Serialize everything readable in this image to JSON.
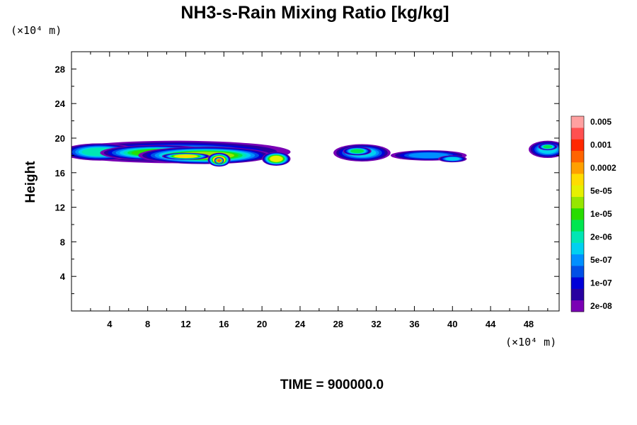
{
  "chart_data": {
    "type": "heatmap",
    "title": "NH3-s-Rain Mixing Ratio [kg/kg]",
    "ylabel": "Height",
    "x_unit_label": "(×10⁴ m)",
    "y_unit_label": "(×10⁴ m)",
    "footer": "TIME = 900000.0",
    "xlim": [
      0,
      51.2
    ],
    "ylim": [
      0,
      30
    ],
    "x_ticks": [
      4,
      8,
      12,
      16,
      20,
      24,
      28,
      32,
      36,
      40,
      44,
      48
    ],
    "y_ticks": [
      4,
      8,
      12,
      16,
      20,
      24,
      28
    ],
    "colorbar": {
      "colors": [
        "#7a00b4",
        "#2800a0",
        "#0000d8",
        "#0050e6",
        "#0090ff",
        "#00d0f0",
        "#00e6b4",
        "#00e650",
        "#28dc00",
        "#96e600",
        "#e6f000",
        "#ffdc00",
        "#ffa000",
        "#ff6400",
        "#ff2800",
        "#ff5050",
        "#ffa0a0"
      ],
      "labels": [
        "2e-08",
        "1e-07",
        "5e-07",
        "2e-06",
        "1e-05",
        "5e-05",
        "0.0002",
        "0.001",
        "0.005"
      ]
    },
    "cloud_blobs": [
      {
        "x": 11,
        "y": 18.4,
        "rx": 12,
        "ry": 1.3,
        "level": 4
      },
      {
        "x": 3,
        "y": 18.4,
        "rx": 4,
        "ry": 1.0,
        "level": 6
      },
      {
        "x": 9,
        "y": 18.3,
        "rx": 6,
        "ry": 0.9,
        "level": 8
      },
      {
        "x": 14,
        "y": 18.0,
        "rx": 7,
        "ry": 1.0,
        "level": 9
      },
      {
        "x": 12,
        "y": 17.9,
        "rx": 2.5,
        "ry": 0.4,
        "level": 11
      },
      {
        "x": 15.5,
        "y": 17.5,
        "rx": 1.2,
        "ry": 0.8,
        "level": 12
      },
      {
        "x": 15.5,
        "y": 17.4,
        "rx": 0.5,
        "ry": 0.4,
        "level": 13
      },
      {
        "x": 21.5,
        "y": 17.6,
        "rx": 1.5,
        "ry": 0.8,
        "level": 10
      },
      {
        "x": 30.5,
        "y": 18.3,
        "rx": 3,
        "ry": 1.0,
        "level": 5
      },
      {
        "x": 30,
        "y": 18.5,
        "rx": 1.5,
        "ry": 0.5,
        "level": 7
      },
      {
        "x": 37.5,
        "y": 18.0,
        "rx": 4,
        "ry": 0.6,
        "level": 4
      },
      {
        "x": 40,
        "y": 17.6,
        "rx": 1.5,
        "ry": 0.4,
        "level": 5
      },
      {
        "x": 50,
        "y": 18.7,
        "rx": 2,
        "ry": 1.0,
        "level": 5
      },
      {
        "x": 50,
        "y": 19.0,
        "rx": 1.0,
        "ry": 0.4,
        "level": 7
      }
    ]
  }
}
